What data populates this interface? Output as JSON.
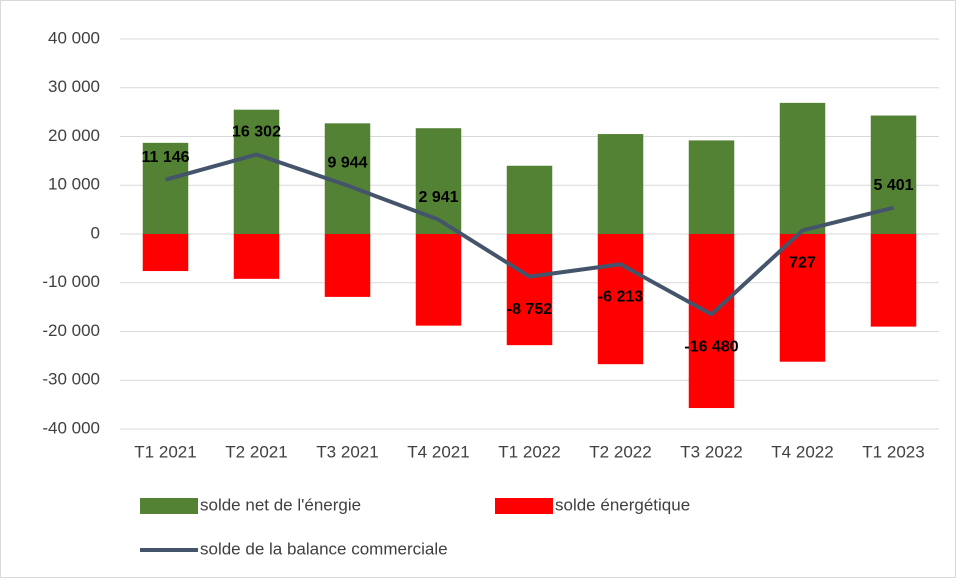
{
  "chart_data": {
    "type": "bar-line",
    "categories": [
      "T1 2021",
      "T2 2021",
      "T3 2021",
      "T4 2021",
      "T1 2022",
      "T2 2022",
      "T3 2022",
      "T4 2022",
      "T1 2023"
    ],
    "series": [
      {
        "name": "solde net de l'énergie",
        "color": "#548235",
        "kind": "bar",
        "values": [
          18700,
          25500,
          22700,
          21700,
          14000,
          20500,
          19200,
          26900,
          24300
        ]
      },
      {
        "name": "solde énergétique",
        "color": "#ff0000",
        "kind": "bar",
        "values": [
          -7600,
          -9200,
          -12900,
          -18800,
          -22800,
          -26700,
          -35700,
          -26200,
          -19000
        ]
      },
      {
        "name": "solde de la balance commerciale",
        "color": "#44546a",
        "kind": "line",
        "values": [
          11146,
          16302,
          9944,
          2941,
          -8752,
          -6213,
          -16480,
          727,
          5401
        ],
        "value_labels": [
          "11 146",
          "16 302",
          "9 944",
          "2 941",
          "-8 752",
          "-6 213",
          "-16 480",
          "727",
          "5 401"
        ]
      }
    ],
    "ylim": [
      -40000,
      40000
    ],
    "yticks": [
      {
        "value": -40000,
        "label": "-40 000"
      },
      {
        "value": -30000,
        "label": "-30 000"
      },
      {
        "value": -20000,
        "label": "-20 000"
      },
      {
        "value": -10000,
        "label": "-10 000"
      },
      0,
      {
        "value": 10000,
        "label": "10 000"
      },
      {
        "value": 20000,
        "label": "20 000"
      },
      {
        "value": 30000,
        "label": "30 000"
      },
      {
        "value": 40000,
        "label": "40 000"
      }
    ],
    "grid": true,
    "legend": "bottom"
  }
}
